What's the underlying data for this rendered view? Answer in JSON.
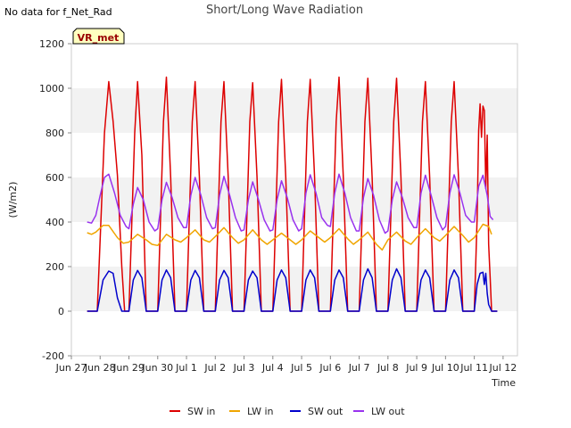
{
  "note": "No data for f_Net_Rad",
  "chart_data": {
    "type": "line",
    "title": "Short/Long Wave Radiation",
    "xlabel": "Time",
    "ylabel": "(W/m2)",
    "ylim": [
      -200,
      1200
    ],
    "yticks": [
      -200,
      0,
      200,
      400,
      600,
      800,
      1000,
      1200
    ],
    "xlim": [
      0,
      15.5
    ],
    "xticks": [
      {
        "x": 0,
        "label": "Jun 27"
      },
      {
        "x": 1,
        "label": "Jun 28"
      },
      {
        "x": 2,
        "label": "Jun 29"
      },
      {
        "x": 3,
        "label": "Jun 30"
      },
      {
        "x": 4,
        "label": "Jul 1"
      },
      {
        "x": 5,
        "label": "Jul 2"
      },
      {
        "x": 6,
        "label": "Jul 3"
      },
      {
        "x": 7,
        "label": "Jul 4"
      },
      {
        "x": 8,
        "label": "Jul 5"
      },
      {
        "x": 9,
        "label": "Jul 6"
      },
      {
        "x": 10,
        "label": "Jul 7"
      },
      {
        "x": 11,
        "label": "Jul 8"
      },
      {
        "x": 12,
        "label": "Jul 9"
      },
      {
        "x": 13,
        "label": "Jul 10"
      },
      {
        "x": 14,
        "label": "Jul 11"
      },
      {
        "x": 15,
        "label": "Jul 12"
      }
    ],
    "x_unit": "days since Jun 27",
    "grid": "horizontal bands",
    "legend_position": "bottom",
    "site_badge": "VR_met",
    "series": [
      {
        "name": "SW in",
        "color": "#dd0000",
        "points": [
          [
            0.55,
            0
          ],
          [
            0.9,
            0
          ],
          [
            1.15,
            800
          ],
          [
            1.3,
            1030
          ],
          [
            1.45,
            850
          ],
          [
            1.6,
            610
          ],
          [
            1.75,
            200
          ],
          [
            1.85,
            0
          ],
          [
            2.0,
            0
          ],
          [
            2.2,
            800
          ],
          [
            2.3,
            1030
          ],
          [
            2.45,
            700
          ],
          [
            2.6,
            0
          ],
          [
            3.0,
            0
          ],
          [
            3.2,
            850
          ],
          [
            3.3,
            1050
          ],
          [
            3.45,
            600
          ],
          [
            3.6,
            0
          ],
          [
            4.0,
            0
          ],
          [
            4.2,
            850
          ],
          [
            4.3,
            1030
          ],
          [
            4.45,
            600
          ],
          [
            4.6,
            0
          ],
          [
            5.0,
            0
          ],
          [
            5.2,
            850
          ],
          [
            5.3,
            1030
          ],
          [
            5.45,
            600
          ],
          [
            5.6,
            0
          ],
          [
            6.0,
            0
          ],
          [
            6.2,
            850
          ],
          [
            6.3,
            1025
          ],
          [
            6.45,
            600
          ],
          [
            6.6,
            0
          ],
          [
            7.0,
            0
          ],
          [
            7.2,
            850
          ],
          [
            7.3,
            1040
          ],
          [
            7.45,
            600
          ],
          [
            7.6,
            0
          ],
          [
            8.0,
            0
          ],
          [
            8.2,
            850
          ],
          [
            8.3,
            1040
          ],
          [
            8.45,
            600
          ],
          [
            8.6,
            0
          ],
          [
            9.0,
            0
          ],
          [
            9.2,
            850
          ],
          [
            9.3,
            1050
          ],
          [
            9.45,
            600
          ],
          [
            9.6,
            0
          ],
          [
            10.0,
            0
          ],
          [
            10.2,
            850
          ],
          [
            10.3,
            1045
          ],
          [
            10.45,
            600
          ],
          [
            10.6,
            0
          ],
          [
            11.0,
            0
          ],
          [
            11.2,
            850
          ],
          [
            11.3,
            1045
          ],
          [
            11.45,
            600
          ],
          [
            11.6,
            0
          ],
          [
            12.0,
            0
          ],
          [
            12.2,
            850
          ],
          [
            12.3,
            1030
          ],
          [
            12.45,
            600
          ],
          [
            12.6,
            0
          ],
          [
            13.0,
            0
          ],
          [
            13.2,
            850
          ],
          [
            13.3,
            1030
          ],
          [
            13.45,
            600
          ],
          [
            13.6,
            0
          ],
          [
            14.0,
            0
          ],
          [
            14.1,
            420
          ],
          [
            14.15,
            810
          ],
          [
            14.2,
            930
          ],
          [
            14.25,
            780
          ],
          [
            14.3,
            920
          ],
          [
            14.35,
            900
          ],
          [
            14.4,
            550
          ],
          [
            14.45,
            790
          ],
          [
            14.5,
            300
          ],
          [
            14.55,
            150
          ],
          [
            14.6,
            0
          ],
          [
            14.8,
            0
          ]
        ]
      },
      {
        "name": "LW in",
        "color": "#f0a500",
        "points": [
          [
            0.55,
            352
          ],
          [
            0.7,
            345
          ],
          [
            0.85,
            355
          ],
          [
            1.1,
            385
          ],
          [
            1.3,
            385
          ],
          [
            1.6,
            330
          ],
          [
            1.8,
            305
          ],
          [
            2.0,
            310
          ],
          [
            2.3,
            345
          ],
          [
            2.6,
            320
          ],
          [
            2.8,
            300
          ],
          [
            3.0,
            295
          ],
          [
            3.3,
            345
          ],
          [
            3.6,
            320
          ],
          [
            3.8,
            310
          ],
          [
            4.0,
            330
          ],
          [
            4.3,
            365
          ],
          [
            4.6,
            320
          ],
          [
            4.8,
            310
          ],
          [
            5.0,
            335
          ],
          [
            5.3,
            375
          ],
          [
            5.6,
            330
          ],
          [
            5.8,
            305
          ],
          [
            6.0,
            320
          ],
          [
            6.3,
            365
          ],
          [
            6.6,
            320
          ],
          [
            6.8,
            300
          ],
          [
            7.0,
            320
          ],
          [
            7.3,
            350
          ],
          [
            7.6,
            320
          ],
          [
            7.8,
            300
          ],
          [
            8.0,
            320
          ],
          [
            8.3,
            360
          ],
          [
            8.6,
            330
          ],
          [
            8.8,
            310
          ],
          [
            9.0,
            330
          ],
          [
            9.3,
            370
          ],
          [
            9.6,
            325
          ],
          [
            9.8,
            300
          ],
          [
            10.0,
            320
          ],
          [
            10.3,
            355
          ],
          [
            10.6,
            300
          ],
          [
            10.8,
            275
          ],
          [
            11.0,
            320
          ],
          [
            11.3,
            355
          ],
          [
            11.6,
            315
          ],
          [
            11.8,
            300
          ],
          [
            12.0,
            330
          ],
          [
            12.3,
            370
          ],
          [
            12.6,
            330
          ],
          [
            12.8,
            315
          ],
          [
            13.0,
            340
          ],
          [
            13.3,
            380
          ],
          [
            13.6,
            340
          ],
          [
            13.8,
            310
          ],
          [
            14.0,
            330
          ],
          [
            14.3,
            390
          ],
          [
            14.5,
            380
          ],
          [
            14.6,
            345
          ]
        ]
      },
      {
        "name": "SW out",
        "color": "#0000cc",
        "points": [
          [
            0.55,
            0
          ],
          [
            0.9,
            0
          ],
          [
            1.1,
            140
          ],
          [
            1.3,
            180
          ],
          [
            1.45,
            170
          ],
          [
            1.6,
            60
          ],
          [
            1.75,
            0
          ],
          [
            2.0,
            0
          ],
          [
            2.15,
            140
          ],
          [
            2.3,
            183
          ],
          [
            2.45,
            150
          ],
          [
            2.6,
            0
          ],
          [
            3.0,
            0
          ],
          [
            3.15,
            140
          ],
          [
            3.3,
            185
          ],
          [
            3.45,
            150
          ],
          [
            3.6,
            0
          ],
          [
            4.0,
            0
          ],
          [
            4.15,
            140
          ],
          [
            4.3,
            183
          ],
          [
            4.45,
            150
          ],
          [
            4.6,
            0
          ],
          [
            5.0,
            0
          ],
          [
            5.15,
            140
          ],
          [
            5.3,
            183
          ],
          [
            5.45,
            150
          ],
          [
            5.6,
            0
          ],
          [
            6.0,
            0
          ],
          [
            6.15,
            140
          ],
          [
            6.3,
            180
          ],
          [
            6.45,
            150
          ],
          [
            6.6,
            0
          ],
          [
            7.0,
            0
          ],
          [
            7.15,
            140
          ],
          [
            7.3,
            185
          ],
          [
            7.45,
            150
          ],
          [
            7.6,
            0
          ],
          [
            8.0,
            0
          ],
          [
            8.15,
            140
          ],
          [
            8.3,
            185
          ],
          [
            8.45,
            150
          ],
          [
            8.6,
            0
          ],
          [
            9.0,
            0
          ],
          [
            9.15,
            140
          ],
          [
            9.3,
            185
          ],
          [
            9.45,
            150
          ],
          [
            9.6,
            0
          ],
          [
            10.0,
            0
          ],
          [
            10.15,
            140
          ],
          [
            10.3,
            190
          ],
          [
            10.45,
            150
          ],
          [
            10.6,
            0
          ],
          [
            11.0,
            0
          ],
          [
            11.15,
            140
          ],
          [
            11.3,
            190
          ],
          [
            11.45,
            150
          ],
          [
            11.6,
            0
          ],
          [
            12.0,
            0
          ],
          [
            12.15,
            140
          ],
          [
            12.3,
            185
          ],
          [
            12.45,
            150
          ],
          [
            12.6,
            0
          ],
          [
            13.0,
            0
          ],
          [
            13.15,
            140
          ],
          [
            13.3,
            185
          ],
          [
            13.45,
            150
          ],
          [
            13.6,
            0
          ],
          [
            14.0,
            0
          ],
          [
            14.1,
            120
          ],
          [
            14.2,
            170
          ],
          [
            14.3,
            175
          ],
          [
            14.35,
            120
          ],
          [
            14.4,
            170
          ],
          [
            14.45,
            80
          ],
          [
            14.5,
            30
          ],
          [
            14.6,
            0
          ],
          [
            14.8,
            0
          ]
        ]
      },
      {
        "name": "LW out",
        "color": "#9933ee",
        "points": [
          [
            0.55,
            400
          ],
          [
            0.7,
            395
          ],
          [
            0.85,
            430
          ],
          [
            1.0,
            520
          ],
          [
            1.15,
            600
          ],
          [
            1.3,
            615
          ],
          [
            1.5,
            530
          ],
          [
            1.7,
            430
          ],
          [
            1.9,
            380
          ],
          [
            2.0,
            370
          ],
          [
            2.15,
            480
          ],
          [
            2.3,
            555
          ],
          [
            2.5,
            500
          ],
          [
            2.7,
            400
          ],
          [
            2.9,
            360
          ],
          [
            3.0,
            370
          ],
          [
            3.15,
            500
          ],
          [
            3.3,
            578
          ],
          [
            3.5,
            510
          ],
          [
            3.7,
            420
          ],
          [
            3.9,
            375
          ],
          [
            4.0,
            375
          ],
          [
            4.15,
            520
          ],
          [
            4.3,
            600
          ],
          [
            4.5,
            520
          ],
          [
            4.7,
            420
          ],
          [
            4.9,
            370
          ],
          [
            5.0,
            375
          ],
          [
            5.15,
            520
          ],
          [
            5.3,
            605
          ],
          [
            5.5,
            520
          ],
          [
            5.7,
            420
          ],
          [
            5.9,
            360
          ],
          [
            6.0,
            365
          ],
          [
            6.15,
            500
          ],
          [
            6.3,
            580
          ],
          [
            6.5,
            500
          ],
          [
            6.7,
            410
          ],
          [
            6.9,
            360
          ],
          [
            7.0,
            365
          ],
          [
            7.15,
            500
          ],
          [
            7.3,
            585
          ],
          [
            7.5,
            510
          ],
          [
            7.7,
            410
          ],
          [
            7.9,
            360
          ],
          [
            8.0,
            370
          ],
          [
            8.15,
            530
          ],
          [
            8.3,
            612
          ],
          [
            8.5,
            530
          ],
          [
            8.7,
            420
          ],
          [
            8.9,
            385
          ],
          [
            9.0,
            380
          ],
          [
            9.15,
            530
          ],
          [
            9.3,
            615
          ],
          [
            9.5,
            530
          ],
          [
            9.7,
            420
          ],
          [
            9.9,
            360
          ],
          [
            10.0,
            360
          ],
          [
            10.15,
            510
          ],
          [
            10.3,
            595
          ],
          [
            10.5,
            520
          ],
          [
            10.7,
            410
          ],
          [
            10.9,
            350
          ],
          [
            11.0,
            360
          ],
          [
            11.15,
            500
          ],
          [
            11.3,
            580
          ],
          [
            11.5,
            510
          ],
          [
            11.7,
            420
          ],
          [
            11.9,
            375
          ],
          [
            12.0,
            375
          ],
          [
            12.15,
            530
          ],
          [
            12.3,
            610
          ],
          [
            12.5,
            520
          ],
          [
            12.7,
            420
          ],
          [
            12.9,
            365
          ],
          [
            13.0,
            380
          ],
          [
            13.15,
            530
          ],
          [
            13.3,
            612
          ],
          [
            13.5,
            530
          ],
          [
            13.7,
            430
          ],
          [
            13.9,
            400
          ],
          [
            14.0,
            400
          ],
          [
            14.15,
            560
          ],
          [
            14.3,
            610
          ],
          [
            14.45,
            520
          ],
          [
            14.55,
            425
          ],
          [
            14.65,
            410
          ]
        ]
      }
    ]
  }
}
